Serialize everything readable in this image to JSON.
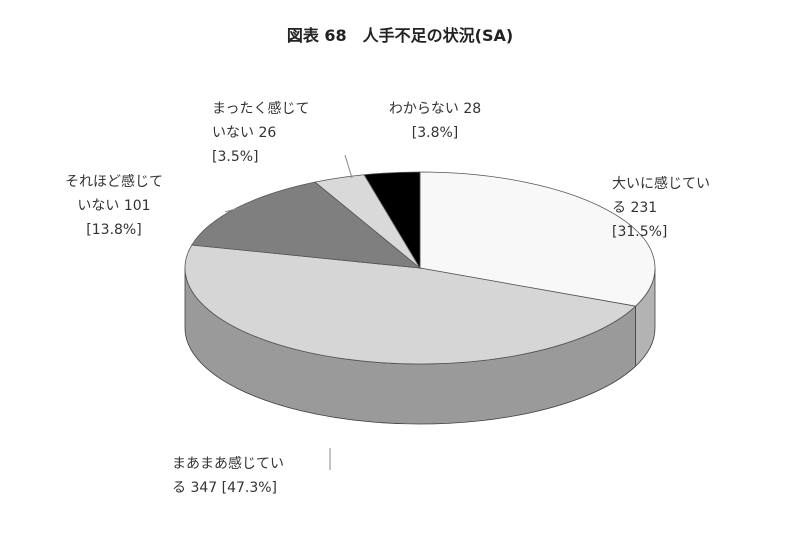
{
  "chart_data": {
    "type": "pie3d",
    "title": "図表 68　人手不足の状況(SA)",
    "categories": [
      "大いに感じている",
      "まあまあ感じている",
      "それほど感じていない",
      "まったく感じていない",
      "わからない"
    ],
    "values": [
      231,
      347,
      101,
      26,
      28
    ],
    "value_labels": [
      "231 [31.5%]",
      "347 [47.3%]",
      "101 [13.8%]",
      "26 [3.5%]",
      "28 [3.8%]"
    ],
    "colors": [
      "#f8f8f8",
      "#d6d6d6",
      "#7f7f7f",
      "#d9d9d9",
      "#000000"
    ]
  }
}
